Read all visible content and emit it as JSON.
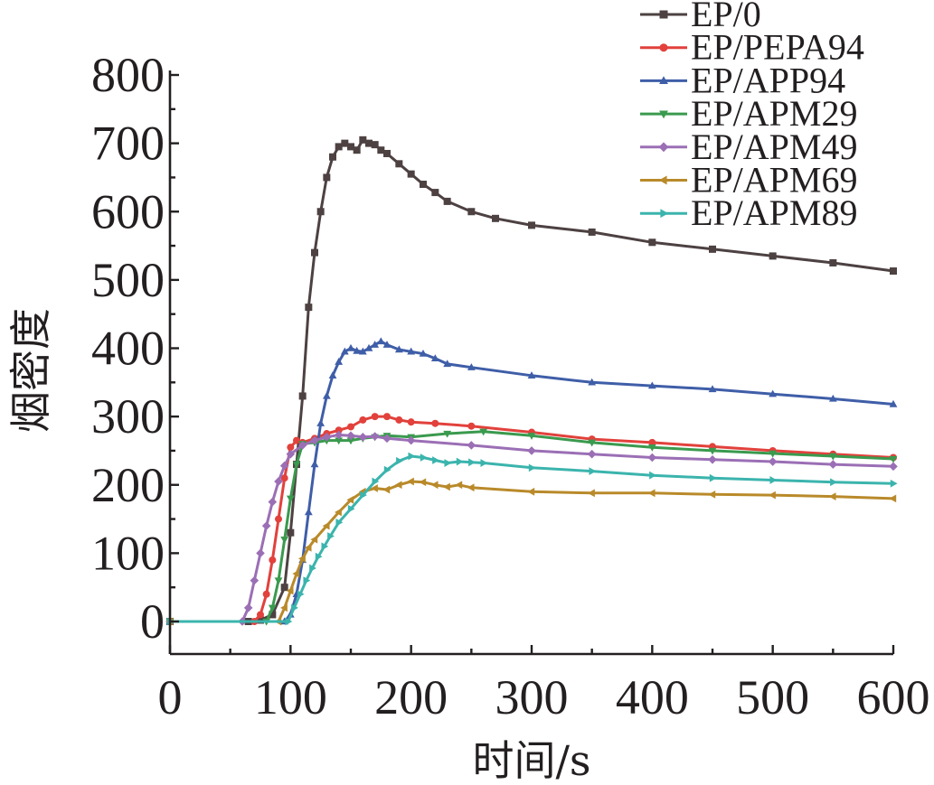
{
  "chart_data": {
    "type": "line",
    "title": "",
    "xlabel": "时间/s",
    "ylabel": "烟密度",
    "xlim": [
      0,
      600
    ],
    "ylim": [
      -50,
      800
    ],
    "xticks": [
      "0",
      "100",
      "200",
      "300",
      "400",
      "500",
      "600"
    ],
    "yticks": [
      "0",
      "100",
      "200",
      "300",
      "400",
      "500",
      "600",
      "700",
      "800"
    ],
    "grid": false,
    "legend_position": "top-right",
    "series": [
      {
        "name": "EP/0",
        "color": "#4d4142",
        "marker": "square",
        "x": [
          0,
          65,
          75,
          85,
          95,
          100,
          105,
          110,
          115,
          120,
          125,
          130,
          135,
          140,
          145,
          150,
          155,
          160,
          165,
          170,
          175,
          180,
          190,
          200,
          210,
          220,
          230,
          250,
          270,
          300,
          350,
          400,
          450,
          500,
          550,
          600
        ],
        "y": [
          0,
          0,
          2,
          10,
          50,
          130,
          230,
          330,
          460,
          540,
          600,
          650,
          680,
          695,
          700,
          695,
          690,
          705,
          700,
          698,
          690,
          685,
          670,
          655,
          640,
          628,
          615,
          600,
          590,
          580,
          570,
          555,
          545,
          535,
          525,
          513
        ]
      },
      {
        "name": "EP/PEPA94",
        "color": "#e2413c",
        "marker": "circle",
        "x": [
          0,
          70,
          75,
          80,
          85,
          90,
          95,
          100,
          105,
          110,
          120,
          130,
          140,
          150,
          160,
          170,
          180,
          190,
          200,
          220,
          250,
          300,
          350,
          400,
          450,
          500,
          550,
          600
        ],
        "y": [
          0,
          0,
          10,
          40,
          90,
          150,
          210,
          255,
          265,
          262,
          268,
          275,
          280,
          285,
          295,
          300,
          300,
          295,
          292,
          290,
          286,
          277,
          267,
          262,
          256,
          250,
          245,
          240
        ]
      },
      {
        "name": "EP/APP94",
        "color": "#3f5ea8",
        "marker": "triangle-up",
        "x": [
          0,
          95,
          100,
          105,
          110,
          115,
          120,
          125,
          130,
          135,
          140,
          145,
          150,
          155,
          160,
          165,
          170,
          175,
          180,
          190,
          200,
          210,
          220,
          230,
          250,
          300,
          350,
          400,
          450,
          500,
          550,
          600
        ],
        "y": [
          0,
          0,
          10,
          40,
          90,
          160,
          230,
          290,
          330,
          360,
          380,
          395,
          400,
          396,
          395,
          400,
          405,
          410,
          405,
          398,
          395,
          392,
          385,
          377,
          372,
          360,
          350,
          345,
          340,
          333,
          326,
          318
        ]
      },
      {
        "name": "EP/APM29",
        "color": "#3a9a4e",
        "marker": "triangle-down",
        "x": [
          0,
          80,
          85,
          90,
          95,
          100,
          105,
          110,
          120,
          130,
          140,
          150,
          160,
          170,
          180,
          200,
          230,
          260,
          300,
          350,
          400,
          450,
          500,
          550,
          600
        ],
        "y": [
          0,
          0,
          20,
          60,
          120,
          180,
          230,
          260,
          262,
          265,
          265,
          265,
          268,
          270,
          272,
          270,
          275,
          278,
          272,
          262,
          255,
          250,
          246,
          242,
          238
        ]
      },
      {
        "name": "EP/APM49",
        "color": "#9b6fb5",
        "marker": "diamond",
        "x": [
          0,
          60,
          65,
          70,
          75,
          80,
          85,
          90,
          95,
          100,
          110,
          120,
          130,
          140,
          150,
          160,
          170,
          180,
          200,
          250,
          300,
          350,
          400,
          450,
          500,
          550,
          600
        ],
        "y": [
          0,
          0,
          20,
          60,
          100,
          140,
          175,
          205,
          228,
          245,
          258,
          265,
          270,
          273,
          272,
          270,
          271,
          268,
          265,
          258,
          250,
          245,
          240,
          237,
          234,
          230,
          227
        ]
      },
      {
        "name": "EP/APM69",
        "color": "#b98a2a",
        "marker": "triangle-left",
        "x": [
          0,
          90,
          95,
          100,
          105,
          110,
          115,
          120,
          130,
          140,
          150,
          160,
          170,
          180,
          190,
          200,
          210,
          220,
          230,
          240,
          250,
          300,
          350,
          400,
          450,
          500,
          550,
          600
        ],
        "y": [
          0,
          0,
          20,
          45,
          70,
          92,
          108,
          120,
          140,
          160,
          178,
          190,
          195,
          193,
          200,
          205,
          204,
          200,
          197,
          200,
          196,
          190,
          188,
          188,
          186,
          185,
          183,
          180
        ]
      },
      {
        "name": "EP/APM89",
        "color": "#3bb4ad",
        "marker": "triangle-right",
        "x": [
          0,
          98,
          103,
          108,
          113,
          118,
          123,
          128,
          133,
          140,
          150,
          160,
          170,
          180,
          190,
          200,
          210,
          220,
          230,
          240,
          250,
          260,
          300,
          350,
          400,
          450,
          500,
          550,
          600
        ],
        "y": [
          0,
          0,
          20,
          40,
          60,
          78,
          95,
          110,
          125,
          145,
          165,
          185,
          205,
          222,
          235,
          242,
          240,
          236,
          232,
          234,
          233,
          232,
          225,
          220,
          214,
          210,
          207,
          204,
          202
        ]
      }
    ]
  }
}
